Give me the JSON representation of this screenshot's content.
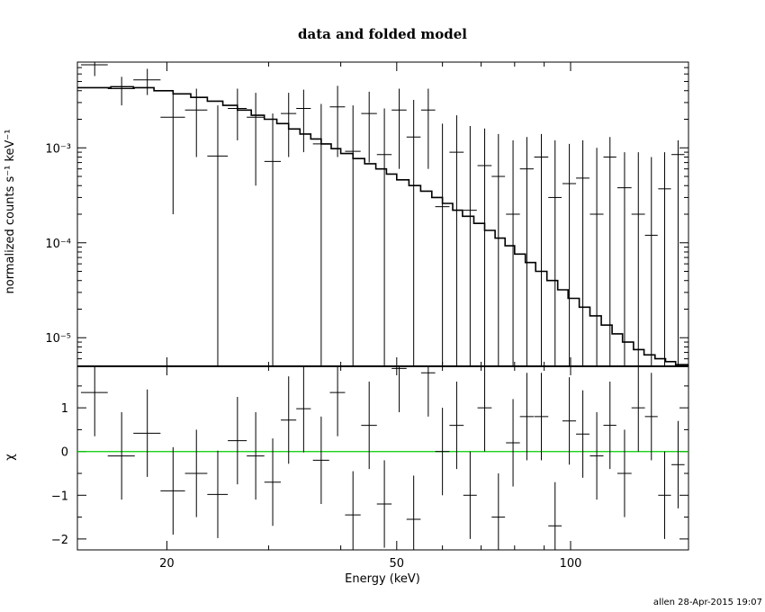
{
  "title": "data and folded model",
  "footer": "allen 28-Apr-2015 19:07",
  "chart_data": [
    {
      "type": "line",
      "panel": "top",
      "title": "data and folded model",
      "xlabel": "Energy (keV)",
      "ylabel": "normalized counts s⁻¹ keV⁻¹",
      "x_scale": "log",
      "y_scale": "log",
      "xlim": [
        14,
        160
      ],
      "ylim": [
        5e-06,
        0.008
      ],
      "y_tick_labels": [
        "10⁻⁵",
        "10⁻⁴",
        "10⁻³"
      ],
      "y_tick_values": [
        1e-05,
        0.0001,
        0.001
      ],
      "series": [
        {
          "kind": "data_points",
          "x": [
            15.0,
            16.7,
            18.5,
            20.5,
            22.5,
            24.5,
            26.5,
            28.5,
            30.5,
            32.5,
            34.5,
            37.0,
            39.5,
            42.0,
            44.8,
            47.6,
            50.5,
            53.5,
            56.7,
            60.0,
            63.5,
            67.0,
            71.0,
            75.0,
            79.5,
            84.0,
            89.0,
            94.0,
            99.5,
            105.0,
            111.0,
            117.0,
            124.0,
            131.0,
            138.0,
            145.5,
            153.5
          ],
          "y": [
            0.0075,
            0.0042,
            0.0052,
            0.0021,
            0.0025,
            0.00082,
            0.0026,
            0.0021,
            0.00072,
            0.0023,
            0.0026,
            0.0011,
            0.0027,
            0.00092,
            0.0023,
            0.00085,
            0.0025,
            0.0013,
            0.0025,
            0.00024,
            0.0009,
            0.00022,
            0.00065,
            0.0005,
            0.0002,
            0.0006,
            0.0008,
            0.0003,
            0.00042,
            0.00048,
            0.0002,
            0.0008,
            0.00038,
            0.0002,
            0.00012,
            0.00037,
            0.00085
          ],
          "xerr": [
            0.8,
            0.9,
            1.0,
            1.0,
            1.0,
            1.0,
            1.0,
            1.0,
            1.0,
            1.0,
            1.0,
            1.2,
            1.2,
            1.3,
            1.4,
            1.4,
            1.5,
            1.5,
            1.6,
            1.7,
            1.8,
            1.8,
            2.0,
            2.0,
            2.2,
            2.3,
            2.5,
            2.5,
            2.7,
            2.8,
            3.0,
            3.0,
            3.5,
            3.5,
            3.5,
            3.7,
            4.0
          ],
          "ylo": [
            0.0057,
            0.0028,
            0.0036,
            0.0002,
            0.0008,
            5e-06,
            0.0012,
            0.0004,
            5e-06,
            0.0008,
            0.0009,
            5e-06,
            0.0008,
            5e-06,
            0.0007,
            5e-06,
            0.0006,
            5e-06,
            0.0006,
            5e-06,
            5e-06,
            5e-06,
            5e-06,
            5e-06,
            5e-06,
            5e-06,
            5e-06,
            5e-06,
            5e-06,
            5e-06,
            5e-06,
            5e-06,
            5e-06,
            5e-06,
            5e-06,
            5e-06,
            5e-06
          ],
          "yhi": [
            0.0095,
            0.0056,
            0.0068,
            0.0039,
            0.0042,
            0.0028,
            0.0042,
            0.0038,
            0.0023,
            0.0038,
            0.0041,
            0.0029,
            0.0045,
            0.0028,
            0.0039,
            0.0026,
            0.0042,
            0.0032,
            0.0042,
            0.0018,
            0.0022,
            0.0017,
            0.0016,
            0.0014,
            0.0012,
            0.0013,
            0.0014,
            0.0012,
            0.0011,
            0.0012,
            0.001,
            0.0013,
            0.0009,
            0.0009,
            0.0008,
            0.0009,
            0.0012
          ]
        },
        {
          "kind": "model_step",
          "x_edges": [
            14.0,
            16.0,
            17.5,
            19.0,
            20.5,
            22.0,
            23.5,
            25.0,
            26.5,
            28.0,
            29.5,
            31.0,
            32.5,
            34.0,
            35.5,
            37.0,
            38.5,
            40.0,
            42.0,
            44.0,
            46.0,
            48.0,
            50.0,
            52.5,
            55.0,
            57.5,
            60.0,
            62.5,
            65.0,
            68.0,
            71.0,
            74.0,
            77.0,
            80.0,
            83.5,
            87.0,
            91.0,
            95.0,
            99.0,
            103.5,
            108.0,
            113.0,
            118.0,
            123.0,
            128.5,
            134.0,
            140.0,
            146.0,
            152.0,
            160.0
          ],
          "y": [
            0.0043,
            0.0044,
            0.0043,
            0.004,
            0.0037,
            0.0034,
            0.0031,
            0.0028,
            0.0025,
            0.0022,
            0.002,
            0.0018,
            0.00158,
            0.0014,
            0.00124,
            0.0011,
            0.00098,
            0.00087,
            0.00077,
            0.00068,
            0.0006,
            0.00053,
            0.00046,
            0.0004,
            0.00035,
            0.0003,
            0.00026,
            0.00022,
            0.00019,
            0.00016,
            0.000135,
            0.000112,
            9.3e-05,
            7.6e-05,
            6.2e-05,
            5e-05,
            4e-05,
            3.2e-05,
            2.6e-05,
            2.1e-05,
            1.7e-05,
            1.36e-05,
            1.1e-05,
            9e-06,
            7.5e-06,
            6.6e-06,
            6e-06,
            5.6e-06,
            5.2e-06
          ]
        }
      ]
    },
    {
      "type": "scatter",
      "panel": "bottom",
      "xlabel": "Energy (keV)",
      "ylabel": "χ",
      "x_scale": "log",
      "xlim": [
        14,
        160
      ],
      "ylim": [
        -2.25,
        1.95
      ],
      "x_tick_labels": [
        "20",
        "50",
        "100"
      ],
      "x_tick_values": [
        20,
        50,
        100
      ],
      "y_tick_labels": [
        "−2",
        "−1",
        "0",
        "1"
      ],
      "y_tick_values": [
        -2,
        -1,
        0,
        1
      ],
      "zero_line_color": "#00cc00",
      "series": [
        {
          "kind": "residuals",
          "x": [
            15.0,
            16.7,
            18.5,
            20.5,
            22.5,
            24.5,
            26.5,
            28.5,
            30.5,
            32.5,
            34.5,
            37.0,
            39.5,
            42.0,
            44.8,
            47.6,
            50.5,
            53.5,
            56.7,
            60.0,
            63.5,
            67.0,
            71.0,
            75.0,
            79.5,
            84.0,
            89.0,
            94.0,
            99.5,
            105.0,
            111.0,
            117.0,
            124.0,
            131.0,
            138.0,
            145.5,
            153.5
          ],
          "y": [
            1.35,
            -0.1,
            0.42,
            -0.9,
            -0.5,
            -0.98,
            0.25,
            -0.1,
            -0.7,
            0.72,
            0.98,
            -0.2,
            1.35,
            -1.45,
            0.6,
            -1.2,
            1.9,
            -1.55,
            1.8,
            0.0,
            0.6,
            -1.0,
            1.0,
            -1.5,
            0.2,
            0.8,
            0.8,
            -1.7,
            0.7,
            0.4,
            -0.1,
            0.6,
            -0.5,
            1.0,
            0.8,
            -1.0,
            -0.3
          ],
          "xerr": [
            0.8,
            0.9,
            1.0,
            1.0,
            1.0,
            1.0,
            1.0,
            1.0,
            1.0,
            1.0,
            1.0,
            1.2,
            1.2,
            1.3,
            1.4,
            1.4,
            1.5,
            1.5,
            1.6,
            1.7,
            1.8,
            1.8,
            2.0,
            2.0,
            2.2,
            2.3,
            2.5,
            2.5,
            2.7,
            2.8,
            3.0,
            3.0,
            3.5,
            3.5,
            3.5,
            3.7,
            4.0
          ],
          "yerr": [
            1.0,
            1.0,
            1.0,
            1.0,
            1.0,
            1.0,
            1.0,
            1.0,
            1.0,
            1.0,
            1.0,
            1.0,
            1.0,
            1.0,
            1.0,
            1.0,
            1.0,
            1.0,
            1.0,
            1.0,
            1.0,
            1.0,
            1.0,
            1.0,
            1.0,
            1.0,
            1.0,
            1.0,
            1.0,
            1.0,
            1.0,
            1.0,
            1.0,
            1.0,
            1.0,
            1.0,
            1.0
          ]
        }
      ]
    }
  ]
}
